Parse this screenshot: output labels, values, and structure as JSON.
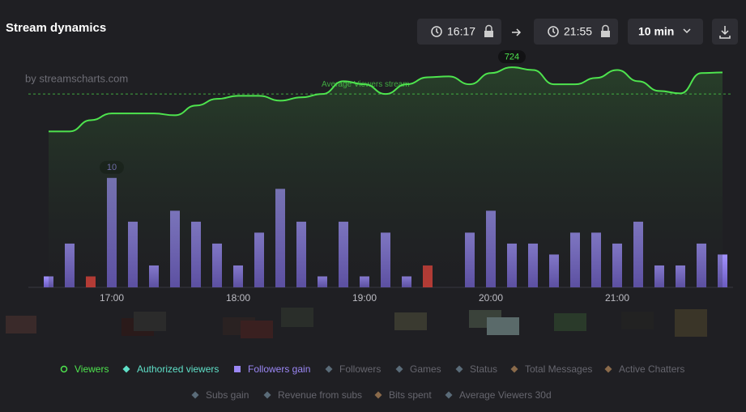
{
  "chart_data": {
    "type": "combo",
    "title": "Stream dynamics",
    "watermark": "by streamscharts.com",
    "controls": {
      "start": "16:17",
      "end": "21:55",
      "interval": "10 min"
    },
    "categories": [
      null,
      null,
      null,
      "17:00",
      null,
      null,
      null,
      null,
      null,
      "18:00",
      null,
      null,
      null,
      null,
      null,
      "19:00",
      null,
      null,
      null,
      null,
      null,
      "20:00",
      null,
      null,
      null,
      null,
      null,
      "21:00",
      null,
      null,
      null,
      null,
      null
    ],
    "ylim": [
      0,
      900
    ],
    "y2lim": [
      0,
      25
    ],
    "series": [
      {
        "name": "Viewers",
        "type": "line",
        "color": "#4ee44e",
        "values": [
          513,
          513,
          550,
          572,
          572,
          572,
          566,
          598,
          620,
          630,
          630,
          614,
          625,
          636,
          678,
          668,
          636,
          668,
          691,
          694,
          668,
          705,
          724,
          715,
          668,
          668,
          689,
          715,
          678,
          646,
          638,
          705,
          707
        ]
      },
      {
        "name": "Followers gain",
        "type": "bar",
        "axis": "y2",
        "color": "#9b87f5",
        "values": [
          1,
          4,
          1,
          10,
          6,
          2,
          7,
          6,
          4,
          2,
          5,
          9,
          6,
          1,
          6,
          1,
          5,
          1,
          2,
          0,
          5,
          7,
          4,
          4,
          3,
          5,
          5,
          4,
          6,
          2,
          2,
          4,
          3
        ],
        "colors": [
          "#9b87f5",
          "#9b87f5",
          "#d9423a",
          "#9b87f5",
          "#9b87f5",
          "#9b87f5",
          "#9b87f5",
          "#9b87f5",
          "#9b87f5",
          "#9b87f5",
          "#9b87f5",
          "#9b87f5",
          "#9b87f5",
          "#9b87f5",
          "#9b87f5",
          "#9b87f5",
          "#9b87f5",
          "#9b87f5",
          "#d9423a",
          "#9b87f5",
          "#9b87f5",
          "#9b87f5",
          "#9b87f5",
          "#9b87f5",
          "#9b87f5",
          "#9b87f5",
          "#9b87f5",
          "#9b87f5",
          "#9b87f5",
          "#9b87f5",
          "#9b87f5",
          "#9b87f5",
          "#9b87f5"
        ]
      }
    ],
    "reference_line": {
      "label": "Average Viewers stream",
      "value": 636,
      "color": "#4ee44e"
    },
    "legend_items": [
      {
        "name": "Authorized viewers",
        "color": "#5fe0c8",
        "active": true
      },
      {
        "name": "Followers",
        "color": "#5a6b78",
        "active": false
      },
      {
        "name": "Games",
        "color": "#5a6b78",
        "active": false
      },
      {
        "name": "Status",
        "color": "#5a6b78",
        "active": false
      },
      {
        "name": "Total Messages",
        "color": "#8a6a4a",
        "active": false
      },
      {
        "name": "Active Chatters",
        "color": "#8a6a4a",
        "active": false
      },
      {
        "name": "Subs gain",
        "color": "#5a6b78",
        "active": false
      },
      {
        "name": "Revenue from subs",
        "color": "#5a6b78",
        "active": false
      },
      {
        "name": "Bits spent",
        "color": "#8a6a4a",
        "active": false
      },
      {
        "name": "Average Viewers 30d",
        "color": "#5a6b78",
        "active": false
      }
    ]
  }
}
